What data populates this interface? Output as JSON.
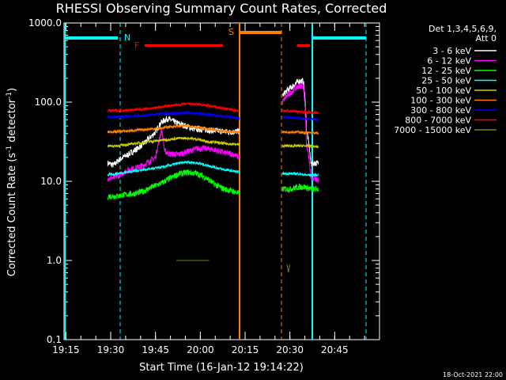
{
  "chart_data": {
    "type": "line",
    "title": "RHESSI Observing Summary Count Rates, Corrected",
    "xlabel": "Start Time (16-Jan-12 19:14:22)",
    "ylabel_main": "Corrected Count Rate (s",
    "ylabel_sup1": "-1",
    "ylabel_mid": " detector",
    "ylabel_sup2": "-1",
    "ylabel_end": ")",
    "x_ticks": [
      {
        "min": 915,
        "label": "19:15"
      },
      {
        "min": 930,
        "label": "19:30"
      },
      {
        "min": 945,
        "label": "19:45"
      },
      {
        "min": 960,
        "label": "20:00"
      },
      {
        "min": 975,
        "label": "20:15"
      },
      {
        "min": 990,
        "label": "20:30"
      },
      {
        "min": 1005,
        "label": "20:45"
      }
    ],
    "xlim": [
      914.37,
      1020
    ],
    "y_ticks": [
      {
        "v": 0.1,
        "label": "0.1"
      },
      {
        "v": 1,
        "label": "1.0"
      },
      {
        "v": 10,
        "label": "10.0"
      },
      {
        "v": 100,
        "label": "100.0"
      },
      {
        "v": 1000,
        "label": "1000.0"
      }
    ],
    "ylim": [
      0.1,
      1000
    ],
    "ylog": true,
    "legend": {
      "placement": "right",
      "header1": "Det 1,3,4,5,6,9,",
      "header2": "Att 0"
    },
    "series": [
      {
        "name": "3 - 6 keV",
        "color": "#ffffff",
        "seg1": [
          [
            929,
            17
          ],
          [
            931,
            16
          ],
          [
            933,
            19
          ],
          [
            936,
            22
          ],
          [
            939,
            26
          ],
          [
            941,
            30
          ],
          [
            943,
            35
          ],
          [
            945,
            42
          ],
          [
            947,
            56
          ],
          [
            949,
            62
          ],
          [
            952,
            55
          ],
          [
            955,
            50
          ],
          [
            958,
            46
          ],
          [
            961,
            45
          ],
          [
            964,
            44
          ],
          [
            967,
            43
          ],
          [
            970,
            42
          ],
          [
            973,
            43
          ]
        ],
        "seg2": [
          [
            987.5,
            120
          ],
          [
            989,
            140
          ],
          [
            991,
            160
          ],
          [
            993,
            185
          ],
          [
            994.5,
            185
          ],
          [
            995.5,
            45
          ],
          [
            997,
            17
          ],
          [
            998,
            17
          ],
          [
            999.5,
            17
          ]
        ]
      },
      {
        "name": "6 - 12 keV",
        "color": "#ff00ff",
        "seg1": [
          [
            929,
            11
          ],
          [
            931,
            11
          ],
          [
            933,
            12
          ],
          [
            936,
            14
          ],
          [
            939,
            15
          ],
          [
            941,
            16
          ],
          [
            943,
            18
          ],
          [
            945,
            20
          ],
          [
            946,
            30
          ],
          [
            947,
            45
          ],
          [
            948,
            24
          ],
          [
            950,
            22
          ],
          [
            953,
            22
          ],
          [
            956,
            24
          ],
          [
            959,
            26
          ],
          [
            962,
            26
          ],
          [
            965,
            25
          ],
          [
            968,
            23
          ],
          [
            971,
            22
          ],
          [
            973,
            20
          ]
        ],
        "seg2": [
          [
            987.5,
            100
          ],
          [
            989,
            120
          ],
          [
            991,
            140
          ],
          [
            993,
            160
          ],
          [
            994.5,
            160
          ],
          [
            995.5,
            30
          ],
          [
            997,
            11
          ],
          [
            998,
            11
          ],
          [
            999.5,
            10
          ]
        ]
      },
      {
        "name": "12 - 25 keV",
        "color": "#00ff00",
        "seg1": [
          [
            929,
            6.5
          ],
          [
            932,
            6.5
          ],
          [
            935,
            6.8
          ],
          [
            938,
            7
          ],
          [
            941,
            7.5
          ],
          [
            944,
            8.5
          ],
          [
            947,
            9.5
          ],
          [
            950,
            11
          ],
          [
            953,
            12.5
          ],
          [
            956,
            13
          ],
          [
            959,
            12.5
          ],
          [
            962,
            11
          ],
          [
            965,
            9
          ],
          [
            968,
            8
          ],
          [
            971,
            7.5
          ],
          [
            973,
            7
          ]
        ],
        "seg2": [
          [
            987.5,
            8
          ],
          [
            990,
            8
          ],
          [
            993,
            8.5
          ],
          [
            995,
            8.5
          ],
          [
            997,
            8
          ],
          [
            999.5,
            8
          ]
        ]
      },
      {
        "name": "25 - 50 keV",
        "color": "#00ffff",
        "seg1": [
          [
            929,
            12
          ],
          [
            932,
            12.5
          ],
          [
            935,
            13
          ],
          [
            938,
            13.5
          ],
          [
            941,
            14
          ],
          [
            944,
            14.5
          ],
          [
            947,
            15
          ],
          [
            950,
            16
          ],
          [
            953,
            17
          ],
          [
            956,
            17.5
          ],
          [
            959,
            17
          ],
          [
            962,
            16
          ],
          [
            965,
            15
          ],
          [
            968,
            14
          ],
          [
            971,
            13.5
          ],
          [
            973,
            13
          ]
        ],
        "seg2": [
          [
            987.5,
            12.5
          ],
          [
            990,
            12.5
          ],
          [
            993,
            12.5
          ],
          [
            995,
            12
          ],
          [
            997,
            12
          ],
          [
            999.5,
            12
          ]
        ]
      },
      {
        "name": "50 - 100 keV",
        "color": "#cccc00",
        "seg1": [
          [
            929,
            28
          ],
          [
            932,
            28
          ],
          [
            935,
            29
          ],
          [
            938,
            30
          ],
          [
            941,
            31
          ],
          [
            944,
            32
          ],
          [
            947,
            33
          ],
          [
            950,
            34
          ],
          [
            953,
            35
          ],
          [
            956,
            35
          ],
          [
            959,
            34
          ],
          [
            962,
            32
          ],
          [
            965,
            31
          ],
          [
            968,
            30
          ],
          [
            971,
            29.5
          ],
          [
            973,
            29
          ]
        ],
        "seg2": [
          [
            987.5,
            28
          ],
          [
            990,
            28
          ],
          [
            993,
            28
          ],
          [
            995,
            28
          ],
          [
            997,
            28
          ],
          [
            999.5,
            27
          ]
        ]
      },
      {
        "name": "100 - 300 keV",
        "color": "#ff7f00",
        "seg1": [
          [
            929,
            42
          ],
          [
            932,
            42.5
          ],
          [
            935,
            43
          ],
          [
            938,
            44
          ],
          [
            941,
            45
          ],
          [
            944,
            46
          ],
          [
            947,
            47
          ],
          [
            950,
            49
          ],
          [
            953,
            50
          ],
          [
            956,
            50
          ],
          [
            959,
            48
          ],
          [
            962,
            46
          ],
          [
            965,
            44
          ],
          [
            968,
            43
          ],
          [
            971,
            42
          ],
          [
            973,
            42
          ]
        ],
        "seg2": [
          [
            987.5,
            42
          ],
          [
            990,
            42
          ],
          [
            993,
            42
          ],
          [
            995,
            41
          ],
          [
            997,
            41
          ],
          [
            999.5,
            40
          ]
        ]
      },
      {
        "name": "300 - 800 keV",
        "color": "#0000ff",
        "seg1": [
          [
            929,
            65
          ],
          [
            932,
            65
          ],
          [
            935,
            66
          ],
          [
            938,
            67
          ],
          [
            941,
            68
          ],
          [
            944,
            70
          ],
          [
            947,
            71
          ],
          [
            950,
            72
          ],
          [
            953,
            73
          ],
          [
            956,
            73
          ],
          [
            959,
            72
          ],
          [
            962,
            70
          ],
          [
            965,
            68
          ],
          [
            968,
            66
          ],
          [
            971,
            64
          ],
          [
            973,
            62
          ]
        ],
        "seg2": [
          [
            987.5,
            65
          ],
          [
            990,
            64
          ],
          [
            993,
            63
          ],
          [
            995,
            62
          ],
          [
            997,
            61
          ],
          [
            999.5,
            60
          ]
        ]
      },
      {
        "name": "800 - 7000 keV",
        "color": "#ff0000",
        "seg1": [
          [
            929,
            78
          ],
          [
            932,
            78
          ],
          [
            935,
            79
          ],
          [
            938,
            80
          ],
          [
            941,
            82
          ],
          [
            944,
            84
          ],
          [
            947,
            87
          ],
          [
            950,
            90
          ],
          [
            953,
            93
          ],
          [
            956,
            95
          ],
          [
            959,
            94
          ],
          [
            962,
            91
          ],
          [
            965,
            87
          ],
          [
            968,
            83
          ],
          [
            971,
            80
          ],
          [
            973,
            78
          ]
        ],
        "seg2": [
          [
            987.5,
            78
          ],
          [
            990,
            77
          ],
          [
            993,
            76
          ],
          [
            995,
            75
          ],
          [
            997,
            74
          ],
          [
            999.5,
            74
          ]
        ]
      },
      {
        "name": "7000 - 15000 keV",
        "color": "#808000",
        "seg1": [
          [
            952,
            1
          ],
          [
            954,
            1
          ],
          [
            956,
            1
          ],
          [
            958,
            1
          ],
          [
            960,
            1
          ],
          [
            962,
            1
          ],
          [
            963,
            1
          ]
        ],
        "seg2": [
          [
            989,
            0.9
          ],
          [
            989.5,
            0.7
          ],
          [
            990,
            0.9
          ]
        ]
      }
    ],
    "flag_labels": {
      "n": "N",
      "f": "F",
      "s": "S"
    },
    "timestamp": "18-Oct-2021 22:00"
  }
}
